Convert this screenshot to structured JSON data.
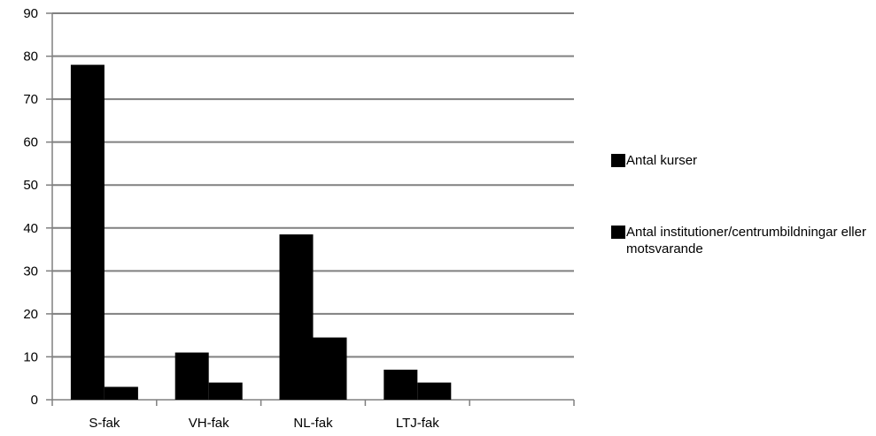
{
  "chart_data": {
    "type": "bar",
    "categories": [
      "S-fak",
      "VH-fak",
      "NL-fak",
      "LTJ-fak",
      ""
    ],
    "series": [
      {
        "name": "Antal kurser",
        "values": [
          78,
          11,
          38.5,
          7,
          null
        ]
      },
      {
        "name": "Antal institutioner/centrumbildningar eller motsvarande",
        "values": [
          3,
          4,
          14.5,
          4,
          null
        ]
      }
    ],
    "y_ticks": [
      "0",
      "10",
      "20",
      "30",
      "40",
      "50",
      "60",
      "70",
      "80",
      "90"
    ],
    "ylim": [
      0,
      90
    ],
    "grid": true,
    "legend_position": "right",
    "colors": {
      "bars": "#000000",
      "grid": "#808080",
      "axis": "#808080"
    }
  }
}
